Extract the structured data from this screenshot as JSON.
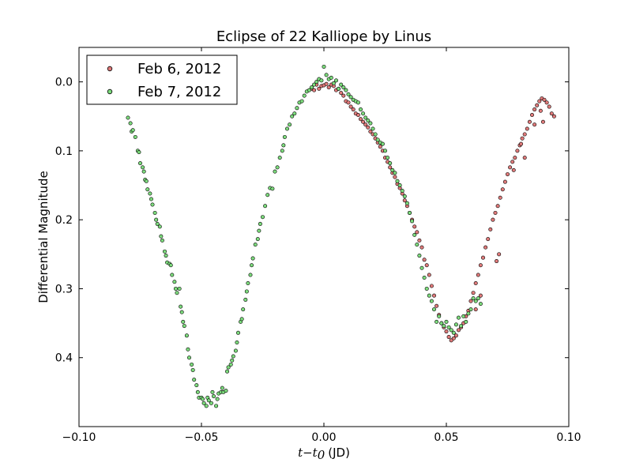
{
  "chart_data": {
    "type": "scatter",
    "title": "Eclipse of 22 Kalliope by Linus",
    "xlabel": "t−t0 (JD)",
    "xlabel_parts": {
      "t": "t",
      "minus": "−",
      "t0_base": "t",
      "t0_sub": "0",
      "unit": "(JD)"
    },
    "ylabel": "Differential Magnitude",
    "xlim": [
      -0.1,
      0.1
    ],
    "ylim": [
      0.5,
      -0.05
    ],
    "y_inverted": true,
    "grid": false,
    "legend_position": "upper-left",
    "x_ticks": [
      -0.1,
      -0.05,
      0.0,
      0.05,
      0.1
    ],
    "x_tick_labels": [
      "−0.10",
      "−0.05",
      "0.00",
      "0.05",
      "0.10"
    ],
    "y_ticks": [
      0.0,
      0.1,
      0.2,
      0.3,
      0.4
    ],
    "y_tick_labels": [
      "0.0",
      "0.1",
      "0.2",
      "0.3",
      "0.4"
    ],
    "series": [
      {
        "name": "Feb 6, 2012",
        "color": "#e07a7a",
        "points": [
          [
            -0.005,
            0.01
          ],
          [
            -0.004,
            0.012
          ],
          [
            -0.003,
            0.004
          ],
          [
            -0.002,
            0.01
          ],
          [
            -0.001,
            0.006
          ],
          [
            0.0,
            0.005
          ],
          [
            0.001,
            0.003
          ],
          [
            0.002,
            0.008
          ],
          [
            0.003,
            0.004
          ],
          [
            0.004,
            0.006
          ],
          [
            0.005,
            0.012
          ],
          [
            0.006,
            0.01
          ],
          [
            0.007,
            0.016
          ],
          [
            0.008,
            0.02
          ],
          [
            0.009,
            0.028
          ],
          [
            0.01,
            0.03
          ],
          [
            0.011,
            0.036
          ],
          [
            0.012,
            0.04
          ],
          [
            0.013,
            0.046
          ],
          [
            0.014,
            0.048
          ],
          [
            0.015,
            0.054
          ],
          [
            0.016,
            0.058
          ],
          [
            0.017,
            0.062
          ],
          [
            0.018,
            0.066
          ],
          [
            0.019,
            0.072
          ],
          [
            0.02,
            0.076
          ],
          [
            0.021,
            0.082
          ],
          [
            0.022,
            0.088
          ],
          [
            0.023,
            0.094
          ],
          [
            0.024,
            0.1
          ],
          [
            0.025,
            0.11
          ],
          [
            0.026,
            0.116
          ],
          [
            0.027,
            0.124
          ],
          [
            0.028,
            0.132
          ],
          [
            0.029,
            0.138
          ],
          [
            0.03,
            0.148
          ],
          [
            0.031,
            0.154
          ],
          [
            0.032,
            0.162
          ],
          [
            0.033,
            0.172
          ],
          [
            0.034,
            0.18
          ],
          [
            0.035,
            0.19
          ],
          [
            0.036,
            0.2
          ],
          [
            0.037,
            0.21
          ],
          [
            0.038,
            0.218
          ],
          [
            0.039,
            0.23
          ],
          [
            0.04,
            0.24
          ],
          [
            0.041,
            0.258
          ],
          [
            0.042,
            0.266
          ],
          [
            0.043,
            0.28
          ],
          [
            0.044,
            0.296
          ],
          [
            0.045,
            0.31
          ],
          [
            0.046,
            0.325
          ],
          [
            0.047,
            0.338
          ],
          [
            0.048,
            0.35
          ],
          [
            0.049,
            0.356
          ],
          [
            0.05,
            0.362
          ],
          [
            0.051,
            0.37
          ],
          [
            0.052,
            0.375
          ],
          [
            0.053,
            0.372
          ],
          [
            0.054,
            0.368
          ],
          [
            0.055,
            0.36
          ],
          [
            0.056,
            0.356
          ],
          [
            0.057,
            0.35
          ],
          [
            0.058,
            0.34
          ],
          [
            0.059,
            0.332
          ],
          [
            0.06,
            0.318
          ],
          [
            0.061,
            0.306
          ],
          [
            0.062,
            0.292
          ],
          [
            0.063,
            0.28
          ],
          [
            0.064,
            0.266
          ],
          [
            0.065,
            0.255
          ],
          [
            0.066,
            0.24
          ],
          [
            0.067,
            0.228
          ],
          [
            0.068,
            0.214
          ],
          [
            0.069,
            0.2
          ],
          [
            0.07,
            0.19
          ],
          [
            0.071,
            0.18
          ],
          [
            0.072,
            0.168
          ],
          [
            0.073,
            0.156
          ],
          [
            0.074,
            0.145
          ],
          [
            0.075,
            0.134
          ],
          [
            0.076,
            0.124
          ],
          [
            0.077,
            0.116
          ],
          [
            0.078,
            0.11
          ],
          [
            0.079,
            0.1
          ],
          [
            0.08,
            0.092
          ],
          [
            0.081,
            0.082
          ],
          [
            0.082,
            0.076
          ],
          [
            0.083,
            0.068
          ],
          [
            0.084,
            0.058
          ],
          [
            0.085,
            0.048
          ],
          [
            0.086,
            0.04
          ],
          [
            0.087,
            0.034
          ],
          [
            0.088,
            0.028
          ],
          [
            0.089,
            0.024
          ],
          [
            0.09,
            0.026
          ],
          [
            0.091,
            0.03
          ],
          [
            0.092,
            0.036
          ],
          [
            0.093,
            0.046
          ],
          [
            0.094,
            0.05
          ],
          [
            0.0705,
            0.26
          ],
          [
            0.0715,
            0.25
          ],
          [
            0.062,
            0.33
          ],
          [
            0.064,
            0.31
          ],
          [
            0.086,
            0.062
          ],
          [
            0.0885,
            0.042
          ],
          [
            0.0895,
            0.058
          ],
          [
            0.0805,
            0.09
          ],
          [
            0.082,
            0.11
          ],
          [
            0.0775,
            0.128
          ]
        ]
      },
      {
        "name": "Feb 7, 2012",
        "color": "#7ddc7d",
        "points": [
          [
            -0.08,
            0.052
          ],
          [
            -0.079,
            0.06
          ],
          [
            -0.0785,
            0.072
          ],
          [
            -0.078,
            0.07
          ],
          [
            -0.077,
            0.08
          ],
          [
            -0.076,
            0.1
          ],
          [
            -0.0755,
            0.102
          ],
          [
            -0.075,
            0.118
          ],
          [
            -0.074,
            0.124
          ],
          [
            -0.0735,
            0.13
          ],
          [
            -0.073,
            0.142
          ],
          [
            -0.0725,
            0.144
          ],
          [
            -0.072,
            0.156
          ],
          [
            -0.071,
            0.162
          ],
          [
            -0.0705,
            0.17
          ],
          [
            -0.07,
            0.178
          ],
          [
            -0.069,
            0.19
          ],
          [
            -0.0685,
            0.2
          ],
          [
            -0.068,
            0.206
          ],
          [
            -0.067,
            0.21
          ],
          [
            -0.0665,
            0.224
          ],
          [
            -0.066,
            0.23
          ],
          [
            -0.065,
            0.246
          ],
          [
            -0.0645,
            0.252
          ],
          [
            -0.064,
            0.262
          ],
          [
            -0.063,
            0.264
          ],
          [
            -0.0625,
            0.266
          ],
          [
            -0.062,
            0.28
          ],
          [
            -0.061,
            0.29
          ],
          [
            -0.0605,
            0.3
          ],
          [
            -0.06,
            0.306
          ],
          [
            -0.059,
            0.3
          ],
          [
            -0.0585,
            0.326
          ],
          [
            -0.058,
            0.334
          ],
          [
            -0.0575,
            0.348
          ],
          [
            -0.057,
            0.354
          ],
          [
            -0.056,
            0.368
          ],
          [
            -0.0555,
            0.388
          ],
          [
            -0.055,
            0.4
          ],
          [
            -0.054,
            0.41
          ],
          [
            -0.0535,
            0.418
          ],
          [
            -0.053,
            0.432
          ],
          [
            -0.052,
            0.44
          ],
          [
            -0.0515,
            0.45
          ],
          [
            -0.051,
            0.458
          ],
          [
            -0.05,
            0.458
          ],
          [
            -0.0495,
            0.46
          ],
          [
            -0.049,
            0.466
          ],
          [
            -0.048,
            0.47
          ],
          [
            -0.0475,
            0.458
          ],
          [
            -0.047,
            0.462
          ],
          [
            -0.046,
            0.466
          ],
          [
            -0.0455,
            0.45
          ],
          [
            -0.045,
            0.456
          ],
          [
            -0.044,
            0.47
          ],
          [
            -0.0435,
            0.46
          ],
          [
            -0.043,
            0.452
          ],
          [
            -0.042,
            0.45
          ],
          [
            -0.0415,
            0.444
          ],
          [
            -0.041,
            0.45
          ],
          [
            -0.04,
            0.448
          ],
          [
            -0.0395,
            0.42
          ],
          [
            -0.039,
            0.414
          ],
          [
            -0.038,
            0.41
          ],
          [
            -0.0375,
            0.404
          ],
          [
            -0.037,
            0.398
          ],
          [
            -0.036,
            0.39
          ],
          [
            -0.0355,
            0.378
          ],
          [
            -0.035,
            0.364
          ],
          [
            -0.034,
            0.348
          ],
          [
            -0.0335,
            0.344
          ],
          [
            -0.033,
            0.33
          ],
          [
            -0.032,
            0.316
          ],
          [
            -0.0315,
            0.304
          ],
          [
            -0.031,
            0.292
          ],
          [
            -0.03,
            0.28
          ],
          [
            -0.0295,
            0.266
          ],
          [
            -0.029,
            0.256
          ],
          [
            -0.028,
            0.236
          ],
          [
            -0.027,
            0.228
          ],
          [
            -0.0265,
            0.216
          ],
          [
            -0.026,
            0.206
          ],
          [
            -0.025,
            0.196
          ],
          [
            -0.024,
            0.18
          ],
          [
            -0.023,
            0.164
          ],
          [
            -0.022,
            0.154
          ],
          [
            -0.021,
            0.155
          ],
          [
            -0.02,
            0.13
          ],
          [
            -0.019,
            0.124
          ],
          [
            -0.018,
            0.11
          ],
          [
            -0.017,
            0.1
          ],
          [
            -0.0165,
            0.092
          ],
          [
            -0.016,
            0.08
          ],
          [
            -0.015,
            0.068
          ],
          [
            -0.014,
            0.062
          ],
          [
            -0.013,
            0.05
          ],
          [
            -0.012,
            0.046
          ],
          [
            -0.011,
            0.038
          ],
          [
            -0.01,
            0.03
          ],
          [
            -0.009,
            0.028
          ],
          [
            -0.008,
            0.02
          ],
          [
            -0.007,
            0.014
          ],
          [
            -0.006,
            0.012
          ],
          [
            -0.005,
            0.008
          ],
          [
            -0.004,
            0.004
          ],
          [
            -0.003,
            0.0
          ],
          [
            -0.002,
            -0.004
          ],
          [
            -0.001,
            -0.002
          ],
          [
            0.0,
            -0.022
          ],
          [
            0.001,
            -0.01
          ],
          [
            0.002,
            -0.004
          ],
          [
            0.003,
            -0.006
          ],
          [
            0.004,
            0.002
          ],
          [
            0.005,
            -0.002
          ],
          [
            0.006,
            0.01
          ],
          [
            0.007,
            0.004
          ],
          [
            0.008,
            0.008
          ],
          [
            0.009,
            0.012
          ],
          [
            0.01,
            0.018
          ],
          [
            0.011,
            0.022
          ],
          [
            0.012,
            0.026
          ],
          [
            0.013,
            0.028
          ],
          [
            0.014,
            0.03
          ],
          [
            0.015,
            0.04
          ],
          [
            0.016,
            0.046
          ],
          [
            0.017,
            0.052
          ],
          [
            0.018,
            0.056
          ],
          [
            0.019,
            0.06
          ],
          [
            0.02,
            0.068
          ],
          [
            0.021,
            0.076
          ],
          [
            0.022,
            0.084
          ],
          [
            0.023,
            0.088
          ],
          [
            0.024,
            0.09
          ],
          [
            0.025,
            0.1
          ],
          [
            0.026,
            0.11
          ],
          [
            0.027,
            0.118
          ],
          [
            0.028,
            0.128
          ],
          [
            0.029,
            0.132
          ],
          [
            0.03,
            0.144
          ],
          [
            0.031,
            0.15
          ],
          [
            0.032,
            0.158
          ],
          [
            0.033,
            0.166
          ],
          [
            0.034,
            0.176
          ],
          [
            0.035,
            0.19
          ],
          [
            0.036,
            0.202
          ],
          [
            0.037,
            0.222
          ],
          [
            0.038,
            0.236
          ],
          [
            0.039,
            0.252
          ],
          [
            0.04,
            0.27
          ],
          [
            0.041,
            0.284
          ],
          [
            0.042,
            0.3
          ],
          [
            0.043,
            0.31
          ],
          [
            0.044,
            0.318
          ],
          [
            0.045,
            0.33
          ],
          [
            0.046,
            0.348
          ],
          [
            0.047,
            0.34
          ],
          [
            0.048,
            0.35
          ],
          [
            0.049,
            0.354
          ],
          [
            0.05,
            0.348
          ],
          [
            0.051,
            0.356
          ],
          [
            0.052,
            0.36
          ],
          [
            0.053,
            0.364
          ],
          [
            0.054,
            0.352
          ],
          [
            0.055,
            0.342
          ],
          [
            0.056,
            0.354
          ],
          [
            0.057,
            0.34
          ],
          [
            0.058,
            0.348
          ],
          [
            0.059,
            0.336
          ],
          [
            0.06,
            0.33
          ],
          [
            0.061,
            0.314
          ],
          [
            0.062,
            0.318
          ],
          [
            0.063,
            0.314
          ],
          [
            0.064,
            0.322
          ]
        ]
      }
    ]
  }
}
